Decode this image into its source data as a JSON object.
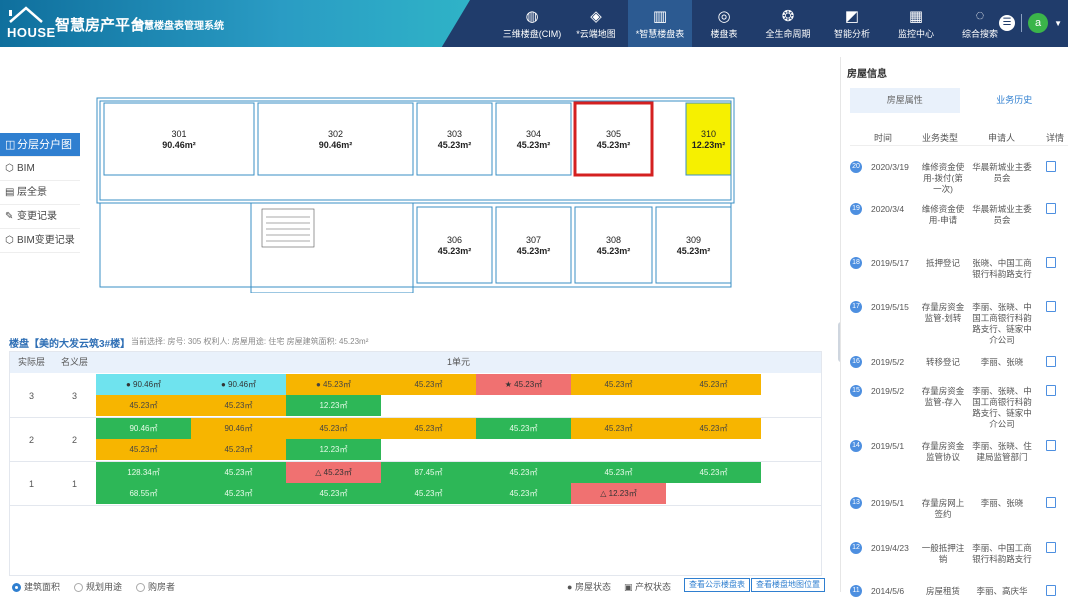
{
  "header": {
    "logo_text": "HOUSE",
    "title": "智慧房产平台",
    "subtitle": "智慧楼盘表管理系统",
    "nav": [
      {
        "label": "三维楼盘(CIM)",
        "icon": "globe-icon"
      },
      {
        "label": "*云端地图",
        "icon": "map-icon"
      },
      {
        "label": "*智慧楼盘表",
        "icon": "bar-chart-icon",
        "active": true
      },
      {
        "label": "楼盘表",
        "icon": "compass-icon"
      },
      {
        "label": "全生命周期",
        "icon": "cycle-icon"
      },
      {
        "label": "智能分析",
        "icon": "analysis-icon"
      },
      {
        "label": "监控中心",
        "icon": "monitor-icon"
      },
      {
        "label": "综合搜索",
        "icon": "search-icon"
      }
    ],
    "user_avatar": "a"
  },
  "left_menu": [
    {
      "label": "分层分户图",
      "icon": "layers-icon",
      "active": true
    },
    {
      "label": "BIM",
      "icon": "cube-icon"
    },
    {
      "label": "层全景",
      "icon": "panorama-icon"
    },
    {
      "label": "变更记录",
      "icon": "record-icon"
    },
    {
      "label": "BIM变更记录",
      "icon": "cube-icon"
    }
  ],
  "floor_plan": {
    "rooms": [
      {
        "no": "301",
        "area": "90.46m²"
      },
      {
        "no": "302",
        "area": "90.46m²"
      },
      {
        "no": "303",
        "area": "45.23m²"
      },
      {
        "no": "304",
        "area": "45.23m²"
      },
      {
        "no": "305",
        "area": "45.23m²",
        "selected": true
      },
      {
        "no": "310",
        "area": "12.23m²",
        "highlight": "#f6f000"
      },
      {
        "no": "306",
        "area": "45.23m²"
      },
      {
        "no": "307",
        "area": "45.23m²"
      },
      {
        "no": "308",
        "area": "45.23m²"
      },
      {
        "no": "309",
        "area": "45.23m²"
      }
    ]
  },
  "building": {
    "title": "楼盘【美的大发云筑3#楼】",
    "info": "当前选择: 房号: 305 权利人: 房屋用途: 住宅 房屋建筑面积: 45.23m²",
    "headers": {
      "actual_floor": "实际层",
      "nominal_floor": "名义层",
      "unit": "1单元"
    },
    "floors": [
      {
        "actual": "3",
        "nominal": "3",
        "rows": [
          [
            {
              "t": "● 90.46㎡",
              "c": "c"
            },
            {
              "t": "● 90.46㎡",
              "c": "c"
            },
            {
              "t": "● 45.23㎡",
              "c": "y"
            },
            {
              "t": "45.23㎡",
              "c": "y"
            },
            {
              "t": "★ 45.23㎡",
              "c": "r"
            },
            {
              "t": "45.23㎡",
              "c": "y"
            },
            {
              "t": "45.23㎡",
              "c": "y"
            }
          ],
          [
            {
              "t": "45.23㎡",
              "c": "y"
            },
            {
              "t": "45.23㎡",
              "c": "y"
            },
            {
              "t": "12.23㎡",
              "c": "g"
            }
          ]
        ]
      },
      {
        "actual": "2",
        "nominal": "2",
        "rows": [
          [
            {
              "t": "90.46㎡",
              "c": "g"
            },
            {
              "t": "90.46㎡",
              "c": "y"
            },
            {
              "t": "45.23㎡",
              "c": "y"
            },
            {
              "t": "45.23㎡",
              "c": "y"
            },
            {
              "t": "45.23㎡",
              "c": "g"
            },
            {
              "t": "45.23㎡",
              "c": "y"
            },
            {
              "t": "45.23㎡",
              "c": "y"
            }
          ],
          [
            {
              "t": "45.23㎡",
              "c": "y"
            },
            {
              "t": "45.23㎡",
              "c": "y"
            },
            {
              "t": "12.23㎡",
              "c": "g"
            }
          ]
        ]
      },
      {
        "actual": "1",
        "nominal": "1",
        "rows": [
          [
            {
              "t": "128.34㎡",
              "c": "g"
            },
            {
              "t": "45.23㎡",
              "c": "g"
            },
            {
              "t": "△ 45.23㎡",
              "c": "r"
            },
            {
              "t": "87.45㎡",
              "c": "g"
            },
            {
              "t": "45.23㎡",
              "c": "g"
            },
            {
              "t": "45.23㎡",
              "c": "g"
            },
            {
              "t": "45.23㎡",
              "c": "g"
            }
          ],
          [
            {
              "t": "68.55㎡",
              "c": "g"
            },
            {
              "t": "45.23㎡",
              "c": "g"
            },
            {
              "t": "45.23㎡",
              "c": "g"
            },
            {
              "t": "45.23㎡",
              "c": "g"
            },
            {
              "t": "45.23㎡",
              "c": "g"
            },
            {
              "t": "△ 12.23㎡",
              "c": "r"
            }
          ]
        ]
      }
    ]
  },
  "bottom": {
    "radios": [
      {
        "label": "建筑面积",
        "checked": true
      },
      {
        "label": "规划用途",
        "checked": false
      },
      {
        "label": "购房者",
        "checked": false
      }
    ],
    "legend_house_status": "房屋状态",
    "legend_property_status": "产权状态",
    "btn_public": "查看公示楼盘表",
    "btn_map": "查看楼盘地图位置"
  },
  "right_panel": {
    "title": "房屋信息",
    "tabs": [
      "房屋属性",
      "业务历史"
    ],
    "active_tab": 1,
    "columns": [
      "时间",
      "业务类型",
      "申请人",
      "详情"
    ],
    "history": [
      {
        "n": "20",
        "date": "2020/3/19",
        "type": "维修资金使用-拨付(第一次)",
        "who": "华晨新城业主委员会"
      },
      {
        "n": "19",
        "date": "2020/3/4",
        "type": "维修资金使用-申请",
        "who": "华晨新城业主委员会"
      },
      {
        "n": "18",
        "date": "2019/5/17",
        "type": "抵押登记",
        "who": "张晓、中国工商银行科韵路支行"
      },
      {
        "n": "17",
        "date": "2019/5/15",
        "type": "存量房资金监管-划转",
        "who": "李丽、张晓、中国工商银行科韵路支行、链家中介公司"
      },
      {
        "n": "16",
        "date": "2019/5/2",
        "type": "转移登记",
        "who": "李丽、张晓"
      },
      {
        "n": "15",
        "date": "2019/5/2",
        "type": "存量房资金监管-存入",
        "who": "李丽、张晓、中国工商银行科韵路支行、链家中介公司"
      },
      {
        "n": "14",
        "date": "2019/5/1",
        "type": "存量房资金监管协议",
        "who": "李丽、张晓、住建局监管部门"
      },
      {
        "n": "13",
        "date": "2019/5/1",
        "type": "存量房网上签约",
        "who": "李丽、张晓"
      },
      {
        "n": "12",
        "date": "2019/4/23",
        "type": "一般抵押注销",
        "who": "李丽、中国工商银行科韵路支行"
      },
      {
        "n": "11",
        "date": "2014/5/6",
        "type": "房屋租赁",
        "who": "李丽、高庆华"
      }
    ]
  }
}
